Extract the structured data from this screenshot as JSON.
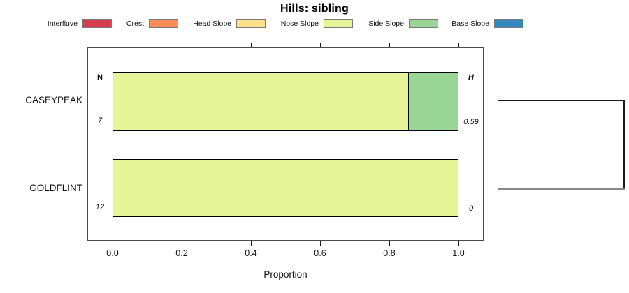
{
  "title": "Hills: sibling",
  "chart_data": {
    "type": "bar",
    "orientation": "horizontal-stacked",
    "title": "Hills: sibling",
    "xlabel": "Proportion",
    "xlim": [
      0,
      1
    ],
    "x_tick_labels": [
      "0.0",
      "0.2",
      "0.4",
      "0.6",
      "0.8",
      "1.0"
    ],
    "x_tick_values": [
      0.0,
      0.2,
      0.4,
      0.6,
      0.8,
      1.0
    ],
    "grid": false,
    "legend_position": "top",
    "legend": [
      {
        "label": "Interfluve",
        "color": "#D53E4F"
      },
      {
        "label": "Crest",
        "color": "#FC8D59"
      },
      {
        "label": "Head Slope",
        "color": "#FEE08B"
      },
      {
        "label": "Nose Slope",
        "color": "#E6F598"
      },
      {
        "label": "Side Slope",
        "color": "#99D594"
      },
      {
        "label": "Base Slope",
        "color": "#3288BD"
      }
    ],
    "column_headers": {
      "left": "N",
      "right": "H"
    },
    "rows": [
      {
        "category": "CASEYPEAK",
        "n": "7",
        "h": "0.59",
        "segments": [
          {
            "name": "Nose Slope",
            "value": 0.855
          },
          {
            "name": "Side Slope",
            "value": 0.145
          }
        ]
      },
      {
        "category": "GOLDFLINT",
        "n": "12",
        "h": "0",
        "segments": [
          {
            "name": "Nose Slope",
            "value": 1.0
          }
        ]
      }
    ]
  }
}
